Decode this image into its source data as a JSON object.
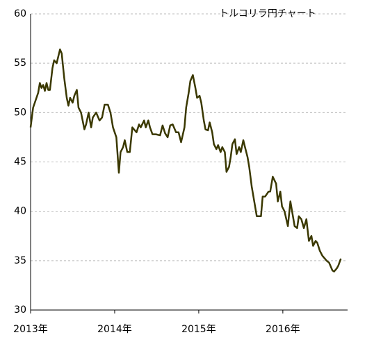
{
  "chart_data": {
    "type": "line",
    "title": "トルコリラ円チャート",
    "x": [
      2013.0,
      2013.03,
      2013.09,
      2013.11,
      2013.13,
      2013.15,
      2013.17,
      2013.19,
      2013.21,
      2013.23,
      2013.26,
      2013.28,
      2013.31,
      2013.35,
      2013.37,
      2013.4,
      2013.43,
      2013.45,
      2013.47,
      2013.5,
      2013.52,
      2013.55,
      2013.57,
      2013.6,
      2013.64,
      2013.66,
      2013.69,
      2013.72,
      2013.74,
      2013.78,
      2013.82,
      2013.85,
      2013.88,
      2013.92,
      2013.95,
      2013.98,
      2014.02,
      2014.05,
      2014.07,
      2014.1,
      2014.12,
      2014.15,
      2014.18,
      2014.21,
      2014.23,
      2014.26,
      2014.29,
      2014.31,
      2014.35,
      2014.37,
      2014.4,
      2014.42,
      2014.45,
      2014.49,
      2014.54,
      2014.57,
      2014.6,
      2014.63,
      2014.66,
      2014.69,
      2014.73,
      2014.76,
      2014.79,
      2014.83,
      2014.85,
      2014.88,
      2014.9,
      2014.93,
      2014.96,
      2014.98,
      2015.01,
      2015.03,
      2015.06,
      2015.08,
      2015.11,
      2015.13,
      2015.16,
      2015.18,
      2015.21,
      2015.23,
      2015.26,
      2015.28,
      2015.31,
      2015.33,
      2015.36,
      2015.38,
      2015.4,
      2015.43,
      2015.45,
      2015.48,
      2015.5,
      2015.53,
      2015.55,
      2015.58,
      2015.6,
      2015.63,
      2015.66,
      2015.69,
      2015.74,
      2015.76,
      2015.79,
      2015.83,
      2015.85,
      2015.88,
      2015.92,
      2015.94,
      2015.97,
      2015.99,
      2016.02,
      2016.06,
      2016.09,
      2016.12,
      2016.14,
      2016.17,
      2016.19,
      2016.22,
      2016.25,
      2016.28,
      2016.31,
      2016.34,
      2016.36,
      2016.39,
      2016.41,
      2016.44,
      2016.47,
      2016.5,
      2016.52,
      2016.55,
      2016.59,
      2016.61,
      2016.64,
      2016.66,
      2016.69
    ],
    "series": [
      {
        "color": "#3a3800",
        "values": [
          48.5,
          50.5,
          52.0,
          53.0,
          52.5,
          52.8,
          52.2,
          53.0,
          52.3,
          52.3,
          54.5,
          55.3,
          55.0,
          56.4,
          56.0,
          53.5,
          51.5,
          50.7,
          51.5,
          51.0,
          51.7,
          52.3,
          50.5,
          50.0,
          48.3,
          48.8,
          50.0,
          48.5,
          49.5,
          50.0,
          49.2,
          49.5,
          50.8,
          50.8,
          50.0,
          48.5,
          47.5,
          43.9,
          46.0,
          46.5,
          47.2,
          46.0,
          46.0,
          48.5,
          48.3,
          48.0,
          48.8,
          48.5,
          49.2,
          48.5,
          49.2,
          48.5,
          47.8,
          47.8,
          47.7,
          48.7,
          47.9,
          47.5,
          48.7,
          48.8,
          48.0,
          48.0,
          47.0,
          48.5,
          50.5,
          52.0,
          53.2,
          53.8,
          52.5,
          51.5,
          51.7,
          51.0,
          49.2,
          48.3,
          48.2,
          49.0,
          48.0,
          46.8,
          46.3,
          46.7,
          46.0,
          46.5,
          46.0,
          44.0,
          44.5,
          45.5,
          46.8,
          47.3,
          45.8,
          46.5,
          46.0,
          47.2,
          46.5,
          45.5,
          44.5,
          42.5,
          41.0,
          39.5,
          39.5,
          41.5,
          41.5,
          42.0,
          42.0,
          43.5,
          42.8,
          41.0,
          42.0,
          40.5,
          40.0,
          38.5,
          41.0,
          39.5,
          38.5,
          38.3,
          39.5,
          39.2,
          38.3,
          39.2,
          37.0,
          37.5,
          36.5,
          37.0,
          36.8,
          36.0,
          35.5,
          35.2,
          35.0,
          34.8,
          34.0,
          33.9,
          34.2,
          34.5,
          35.2
        ]
      }
    ],
    "xlim": [
      2013,
      2016.77
    ],
    "xticks": [
      {
        "value": 2013,
        "label": "2013年"
      },
      {
        "value": 2014,
        "label": "2014年"
      },
      {
        "value": 2015,
        "label": "2015年"
      },
      {
        "value": 2016,
        "label": "2016年"
      }
    ],
    "ylim": [
      30,
      60
    ],
    "yticks": [
      30,
      35,
      40,
      45,
      50,
      55,
      60
    ],
    "grid": true
  }
}
